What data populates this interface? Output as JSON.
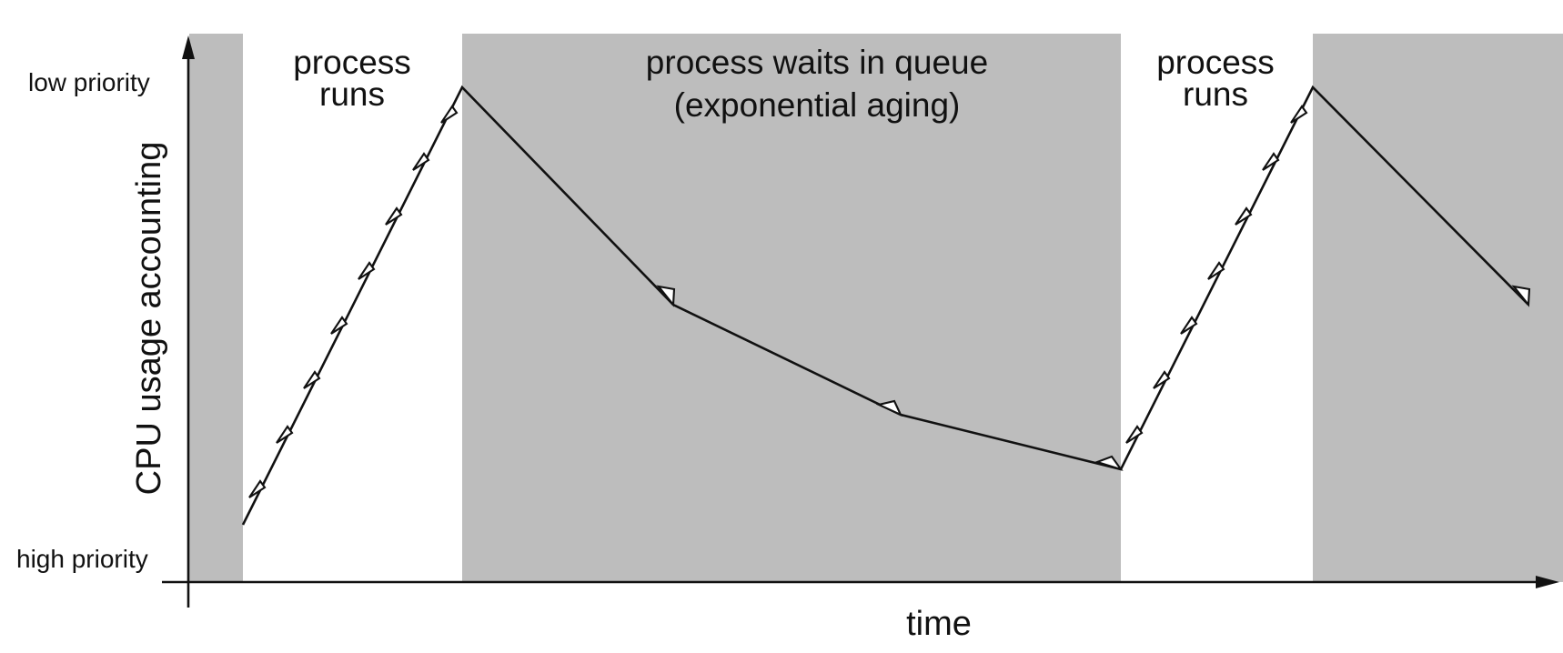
{
  "axes": {
    "y_title": "CPU usage accounting",
    "y_top_label": "low priority",
    "y_bottom_label": "high priority",
    "x_title": "time"
  },
  "regions": [
    {
      "id": "wait-left",
      "state": "waiting",
      "lines": []
    },
    {
      "id": "run-1",
      "state": "running",
      "lines": [
        "process",
        "runs"
      ]
    },
    {
      "id": "wait-middle",
      "state": "waiting",
      "lines": [
        "process waits in queue",
        "(exponential aging)"
      ]
    },
    {
      "id": "run-2",
      "state": "running",
      "lines": [
        "process",
        "runs"
      ]
    },
    {
      "id": "wait-right",
      "state": "waiting",
      "lines": []
    }
  ],
  "colors": {
    "waiting_region": "#bdbdbd",
    "running_region": "#ffffff",
    "line": "#111111",
    "arrow_fill": "#ffffff"
  }
}
